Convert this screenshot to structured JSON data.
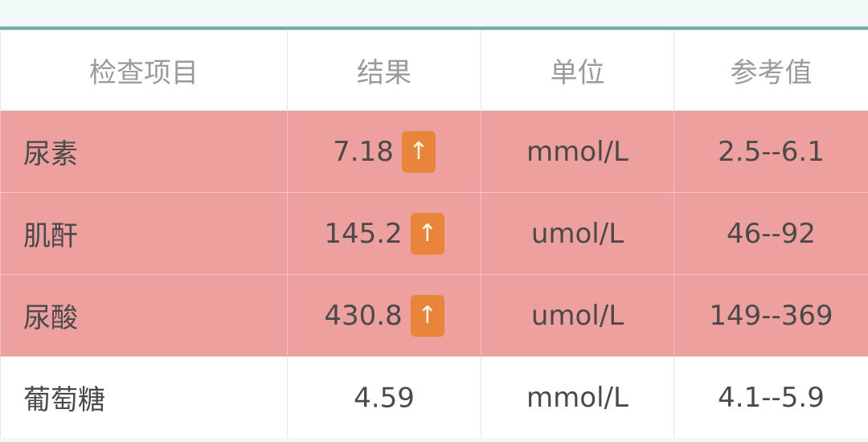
{
  "table": {
    "headers": [
      "检查项目",
      "结果",
      "单位",
      "参考值"
    ],
    "rows": [
      {
        "name": "尿素",
        "result": "7.18",
        "flag": "↑",
        "unit": "mmol/L",
        "reference": "2.5--6.1",
        "abnormal": true
      },
      {
        "name": "肌酐",
        "result": "145.2",
        "flag": "↑",
        "unit": "umol/L",
        "reference": "46--92",
        "abnormal": true
      },
      {
        "name": "尿酸",
        "result": "430.8",
        "flag": "↑",
        "unit": "umol/L",
        "reference": "149--369",
        "abnormal": true
      },
      {
        "name": "葡萄糖",
        "result": "4.59",
        "flag": "",
        "unit": "mmol/L",
        "reference": "4.1--5.9",
        "abnormal": false
      }
    ]
  },
  "colors": {
    "accent": "#74b0a6",
    "abnormal_row": "#eda09e",
    "high_flag": "#e8853a"
  },
  "icons": {
    "high_flag": "arrow-up-icon"
  }
}
